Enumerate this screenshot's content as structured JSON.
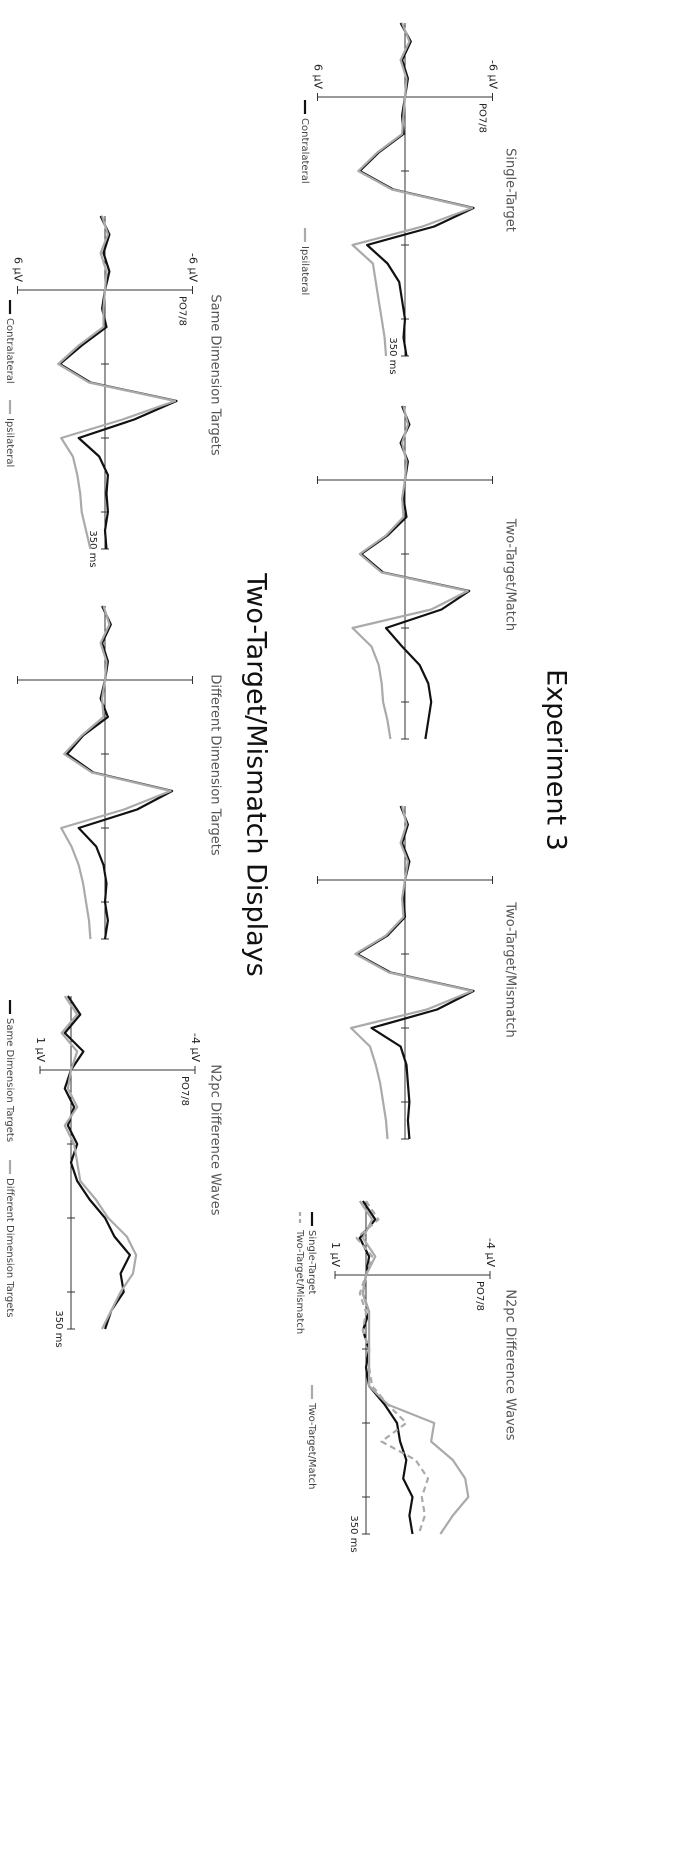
{
  "headings": [
    "Experiment 3",
    "Two-Target/Mismatch Displays"
  ],
  "chart_data": [
    {
      "type": "line",
      "title": "Single-Target",
      "channel": "PO7/8",
      "x": [
        -100,
        -75,
        -50,
        -25,
        0,
        25,
        50,
        75,
        100,
        125,
        150,
        175,
        200,
        225,
        250,
        275,
        300,
        325,
        350
      ],
      "xlim": [
        -100,
        350
      ],
      "xticks": [
        100,
        200,
        300,
        {
          "value": 350,
          "label": "350 ms"
        }
      ],
      "ylim": [
        -6,
        6
      ],
      "y_inverted": true,
      "yticks": [
        {
          "value": -6,
          "label": "-6 µV"
        },
        {
          "value": 6,
          "label": "6 µV"
        }
      ],
      "series": [
        {
          "name": "Contralateral",
          "color": "#111111",
          "values": [
            0.3,
            -0.4,
            0.2,
            -0.2,
            0,
            0.2,
            0.1,
            1.8,
            3.1,
            0.8,
            -4.7,
            -2.0,
            2.6,
            1.2,
            0.4,
            0.2,
            0,
            0.1,
            -0.1
          ]
        },
        {
          "name": "Ipsilateral",
          "color": "#aaaaaa",
          "values": [
            0.2,
            -0.3,
            0.3,
            -0.1,
            0,
            0.1,
            0.2,
            1.9,
            3.2,
            0.9,
            -4.6,
            -1.2,
            3.6,
            2.2,
            2.0,
            1.8,
            1.6,
            1.4,
            1.3
          ]
        }
      ]
    },
    {
      "type": "line",
      "title": "Two-Target/Match",
      "x": [
        -100,
        -75,
        -50,
        -25,
        0,
        25,
        50,
        75,
        100,
        125,
        150,
        175,
        200,
        225,
        250,
        275,
        300,
        325,
        350
      ],
      "xlim": [
        -100,
        350
      ],
      "xticks": [
        100,
        200,
        300,
        350
      ],
      "tick_labels": false,
      "ylim": [
        -6,
        6
      ],
      "y_inverted": true,
      "yticks": [
        -6,
        6
      ],
      "series": [
        {
          "color": "#111111",
          "values": [
            0.2,
            -0.3,
            0.3,
            -0.2,
            0,
            0.1,
            -0.1,
            1.2,
            3.0,
            1.5,
            -4.4,
            -2.5,
            1.3,
            0.2,
            -1.0,
            -1.6,
            -1.8,
            -1.6,
            -1.4
          ]
        },
        {
          "color": "#aaaaaa",
          "values": [
            0.1,
            -0.2,
            0.2,
            -0.1,
            0,
            0.2,
            0.1,
            1.3,
            3.1,
            1.6,
            -4.3,
            -1.8,
            3.6,
            2.3,
            1.8,
            1.6,
            1.5,
            1.2,
            1.0
          ]
        }
      ]
    },
    {
      "type": "line",
      "title": "Two-Target/Mismatch",
      "x": [
        -100,
        -75,
        -50,
        -25,
        0,
        25,
        50,
        75,
        100,
        125,
        150,
        175,
        200,
        225,
        250,
        275,
        300,
        325,
        350
      ],
      "xlim": [
        -100,
        350
      ],
      "xticks": [
        100,
        200,
        300,
        350
      ],
      "tick_labels": false,
      "ylim": [
        -6,
        6
      ],
      "y_inverted": true,
      "yticks": [
        -6,
        6
      ],
      "series": [
        {
          "color": "#111111",
          "values": [
            0.3,
            -0.2,
            0.2,
            -0.3,
            0,
            0.1,
            0,
            1.2,
            3.3,
            1.0,
            -4.7,
            -2.2,
            2.3,
            0.3,
            -0.1,
            -0.2,
            -0.3,
            -0.2,
            -0.3
          ]
        },
        {
          "color": "#aaaaaa",
          "values": [
            0.2,
            -0.1,
            0.3,
            -0.2,
            0,
            0.2,
            0.1,
            1.3,
            3.4,
            1.1,
            -4.6,
            -1.5,
            3.7,
            2.4,
            2.0,
            1.7,
            1.5,
            1.3,
            1.2
          ]
        }
      ]
    },
    {
      "type": "line",
      "title": "N2pc Difference Waves",
      "channel": "PO7/8",
      "x": [
        -100,
        -75,
        -50,
        -25,
        0,
        25,
        50,
        75,
        100,
        125,
        150,
        175,
        200,
        225,
        250,
        275,
        300,
        325,
        350
      ],
      "xlim": [
        -100,
        350
      ],
      "xticks": [
        100,
        200,
        300,
        {
          "value": 350,
          "label": "350 ms"
        }
      ],
      "ylim": [
        -4,
        1
      ],
      "y_inverted": true,
      "yticks": [
        {
          "value": -4,
          "label": "-4 µV"
        },
        {
          "value": 1,
          "label": "1 µV"
        }
      ],
      "series": [
        {
          "name": "Single-Target",
          "color": "#111111",
          "values": [
            0.1,
            -0.3,
            0.2,
            -0.1,
            0,
            0.1,
            -0.1,
            0.1,
            -0.1,
            0,
            -0.1,
            -0.6,
            -1.0,
            -1.1,
            -1.3,
            -1.2,
            -1.5,
            -1.4,
            -1.5
          ]
        },
        {
          "name": "Two-Target/Mismatch",
          "color": "#aaaaaa",
          "dashed": true,
          "values": [
            0,
            -0.4,
            0.3,
            -0.2,
            0,
            0.2,
            0,
            0.1,
            -0.1,
            -0.1,
            -0.2,
            -0.7,
            -1.3,
            -0.5,
            -1.6,
            -2.0,
            -1.8,
            -1.9,
            -1.7
          ]
        },
        {
          "name": "Two-Target/Match",
          "color": "#aaaaaa",
          "values": [
            0.2,
            -0.2,
            0.1,
            -0.3,
            0,
            0.1,
            -0.1,
            -0.1,
            -0.1,
            -0.1,
            -0.1,
            -0.7,
            -2.2,
            -2.1,
            -2.8,
            -3.2,
            -3.3,
            -2.8,
            -2.4
          ]
        }
      ]
    },
    {
      "type": "line",
      "title": "Same Dimension Targets",
      "channel": "PO7/8",
      "x": [
        -100,
        -75,
        -50,
        -25,
        0,
        25,
        50,
        75,
        100,
        125,
        150,
        175,
        200,
        225,
        250,
        275,
        300,
        325,
        350
      ],
      "xlim": [
        -100,
        350
      ],
      "xticks": [
        100,
        200,
        300,
        {
          "value": 350,
          "label": "350 ms"
        }
      ],
      "ylim": [
        -6,
        6
      ],
      "y_inverted": true,
      "yticks": [
        {
          "value": -6,
          "label": "-6 µV"
        },
        {
          "value": 6,
          "label": "6 µV"
        }
      ],
      "series": [
        {
          "name": "Contralateral",
          "color": "#111111",
          "values": [
            0.3,
            -0.3,
            0.1,
            -0.3,
            0,
            0.2,
            -0.1,
            1.6,
            3.1,
            1.0,
            -4.9,
            -2.0,
            1.8,
            0.4,
            -0.2,
            -0.1,
            -0.2,
            0,
            -0.1
          ]
        },
        {
          "name": "Ipsilateral",
          "color": "#aaaaaa",
          "values": [
            0.2,
            -0.2,
            0.3,
            -0.1,
            0,
            0.1,
            0.1,
            1.8,
            3.2,
            1.1,
            -4.8,
            -1.2,
            3.0,
            2.2,
            1.9,
            1.7,
            1.6,
            1.3,
            1.0
          ]
        }
      ]
    },
    {
      "type": "line",
      "title": "Different Dimension Targets",
      "x": [
        -100,
        -75,
        -50,
        -25,
        0,
        25,
        50,
        75,
        100,
        125,
        150,
        175,
        200,
        225,
        250,
        275,
        300,
        325,
        350
      ],
      "xlim": [
        -100,
        350
      ],
      "xticks": [
        100,
        200,
        300,
        350
      ],
      "tick_labels": false,
      "ylim": [
        -6,
        6
      ],
      "y_inverted": true,
      "yticks": [
        -6,
        6
      ],
      "series": [
        {
          "color": "#111111",
          "values": [
            0.2,
            -0.4,
            0.2,
            -0.2,
            0,
            0.3,
            -0.2,
            1.5,
            2.6,
            0.8,
            -4.6,
            -2.2,
            1.8,
            0.6,
            0.1,
            -0.1,
            0,
            -0.2,
            0
          ]
        },
        {
          "color": "#aaaaaa",
          "values": [
            0.1,
            -0.3,
            0.3,
            -0.1,
            0,
            0.2,
            0.1,
            1.6,
            2.8,
            0.9,
            -4.5,
            -1.3,
            3.0,
            2.3,
            1.8,
            1.5,
            1.3,
            1.1,
            1.0
          ]
        }
      ]
    },
    {
      "type": "line",
      "title": "N2pc Difference Waves",
      "channel": "PO7/8",
      "x": [
        -100,
        -75,
        -50,
        -25,
        0,
        25,
        50,
        75,
        100,
        125,
        150,
        175,
        200,
        225,
        250,
        275,
        300,
        325,
        350
      ],
      "xlim": [
        -100,
        350
      ],
      "xticks": [
        100,
        200,
        300,
        {
          "value": 350,
          "label": "350 ms"
        }
      ],
      "ylim": [
        -4,
        1
      ],
      "y_inverted": true,
      "yticks": [
        {
          "value": -4,
          "label": "-4 µV"
        },
        {
          "value": 1,
          "label": "1 µV"
        }
      ],
      "series": [
        {
          "name": "Same Dimension Targets",
          "color": "#111111",
          "values": [
            0.1,
            -0.3,
            0.2,
            -0.4,
            0,
            0.2,
            -0.1,
            0.1,
            -0.2,
            0,
            -0.2,
            -0.6,
            -1.1,
            -1.4,
            -1.9,
            -1.6,
            -1.7,
            -1.3,
            -1.1
          ]
        },
        {
          "name": "Different Dimension Targets",
          "color": "#aaaaaa",
          "values": [
            0.2,
            -0.2,
            0.3,
            -0.2,
            0,
            0.1,
            -0.2,
            0.2,
            -0.1,
            -0.2,
            -0.3,
            -0.8,
            -1.2,
            -1.8,
            -2.1,
            -2.0,
            -1.6,
            -1.3,
            -1.0
          ]
        }
      ]
    }
  ]
}
